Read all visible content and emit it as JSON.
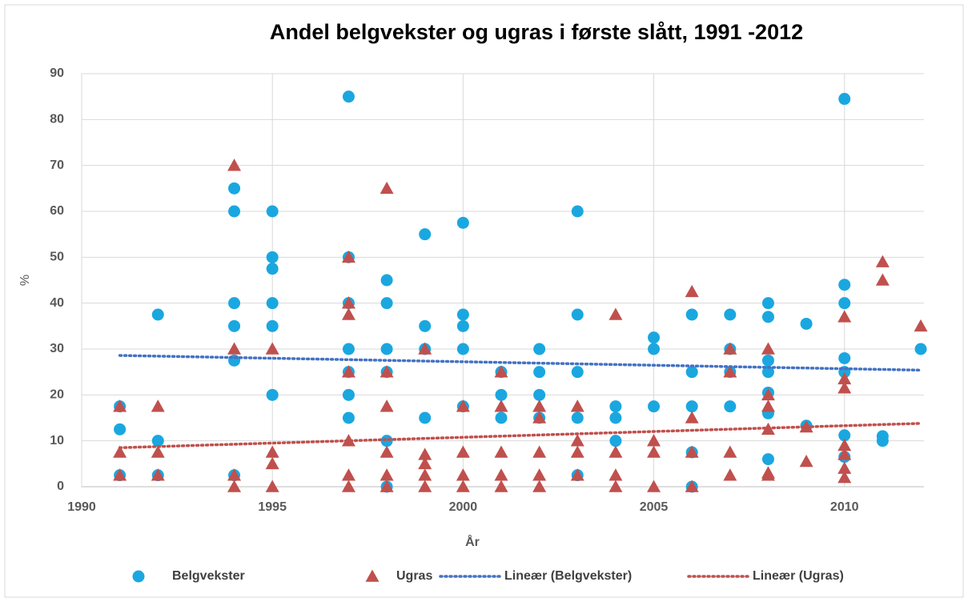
{
  "chart_data": {
    "type": "scatter",
    "title": "Andel belgvekster og ugras i første slått, 1991 -2012",
    "x_label": "År",
    "y_label": "%",
    "xlim": [
      1990,
      2012
    ],
    "xticks": [
      1990,
      1995,
      2000,
      2005,
      2010
    ],
    "ylim": [
      0,
      90
    ],
    "yticks": [
      0,
      10,
      20,
      30,
      40,
      50,
      60,
      70,
      80,
      90
    ],
    "grid": true,
    "legend": "bottom",
    "series": [
      {
        "name": "Belgvekster",
        "color": "#1aa7e0",
        "marker": "circle",
        "x": [
          1991,
          1991,
          1991,
          1992,
          1992,
          1992,
          1994,
          1994,
          1994,
          1994,
          1994,
          1994,
          1995,
          1995,
          1995,
          1995,
          1995,
          1995,
          1997,
          1997,
          1997,
          1997,
          1997,
          1997,
          1997,
          1998,
          1998,
          1998,
          1998,
          1998,
          1998,
          1999,
          1999,
          1999,
          1999,
          2000,
          2000,
          2000,
          2000,
          2000,
          2001,
          2001,
          2001,
          2002,
          2002,
          2002,
          2002,
          2003,
          2003,
          2003,
          2003,
          2003,
          2004,
          2004,
          2004,
          2005,
          2005,
          2005,
          2006,
          2006,
          2006,
          2006,
          2006,
          2007,
          2007,
          2007,
          2007,
          2008,
          2008,
          2008,
          2008,
          2008,
          2008,
          2008,
          2009,
          2009,
          2010,
          2010,
          2010,
          2010,
          2010,
          2010,
          2010,
          2011,
          2011,
          2012
        ],
        "values": [
          17.5,
          12.5,
          2.5,
          37.5,
          10,
          2.5,
          65,
          60,
          40,
          35,
          27.5,
          2.5,
          60,
          50,
          47.5,
          40,
          35,
          20,
          85,
          50,
          40,
          30,
          25,
          20,
          15,
          45,
          40,
          30,
          25,
          10,
          0,
          55,
          35,
          30,
          15,
          57.5,
          37.5,
          35,
          30,
          17.5,
          25,
          20,
          15,
          30,
          25,
          20,
          15,
          60,
          37.5,
          25,
          15,
          2.5,
          17.5,
          15,
          10,
          32.5,
          30,
          17.5,
          37.5,
          25,
          17.5,
          7.5,
          0,
          37.5,
          30,
          25,
          17.5,
          40,
          37,
          27.5,
          25,
          20.5,
          16,
          6,
          35.5,
          13.3,
          84.5,
          44,
          40,
          28,
          25,
          11.2,
          6.5,
          11,
          10,
          30
        ]
      },
      {
        "name": "Ugras",
        "color": "#c0504d",
        "marker": "triangle",
        "x": [
          1991,
          1991,
          1991,
          1992,
          1992,
          1992,
          1994,
          1994,
          1994,
          1994,
          1995,
          1995,
          1995,
          1995,
          1997,
          1997,
          1997,
          1997,
          1997,
          1997,
          1997,
          1998,
          1998,
          1998,
          1998,
          1998,
          1998,
          1999,
          1999,
          1999,
          1999,
          1999,
          2000,
          2000,
          2000,
          2000,
          2001,
          2001,
          2001,
          2001,
          2001,
          2002,
          2002,
          2002,
          2002,
          2002,
          2003,
          2003,
          2003,
          2003,
          2004,
          2004,
          2004,
          2004,
          2005,
          2005,
          2005,
          2006,
          2006,
          2006,
          2006,
          2007,
          2007,
          2007,
          2007,
          2008,
          2008,
          2008,
          2008,
          2008,
          2008,
          2009,
          2009,
          2010,
          2010,
          2010,
          2010,
          2010,
          2010,
          2010,
          2011,
          2011,
          2012
        ],
        "values": [
          17.5,
          7.5,
          2.5,
          17.5,
          7.5,
          2.5,
          70,
          30,
          2.5,
          0,
          30,
          7.5,
          5,
          0,
          50,
          40,
          37.5,
          25,
          10,
          2.5,
          0,
          65,
          25,
          17.5,
          7.5,
          2.5,
          0,
          30,
          7,
          5,
          2.5,
          0,
          17.5,
          7.5,
          2.5,
          0,
          25,
          17.5,
          7.5,
          2.5,
          0,
          17.5,
          15,
          7.5,
          2.5,
          0,
          17.5,
          10,
          7.5,
          2.5,
          37.5,
          7.5,
          2.5,
          0,
          10,
          7.5,
          0,
          42.5,
          15,
          7.5,
          0,
          30,
          25,
          7.5,
          2.5,
          30,
          20,
          17.5,
          12.5,
          3,
          2.5,
          13,
          5.5,
          37,
          23.5,
          21.5,
          9,
          7,
          4,
          2,
          49,
          45,
          35
        ]
      },
      {
        "name": "Lineær (Belgvekster)",
        "color": "#4472c4",
        "marker": "dotted",
        "x": [
          1991,
          2012
        ],
        "values": [
          28.6,
          25.4
        ]
      },
      {
        "name": "Lineær (Ugras)",
        "color": "#c0504d",
        "marker": "dotted",
        "x": [
          1991,
          2012
        ],
        "values": [
          8.5,
          13.8
        ]
      }
    ]
  }
}
